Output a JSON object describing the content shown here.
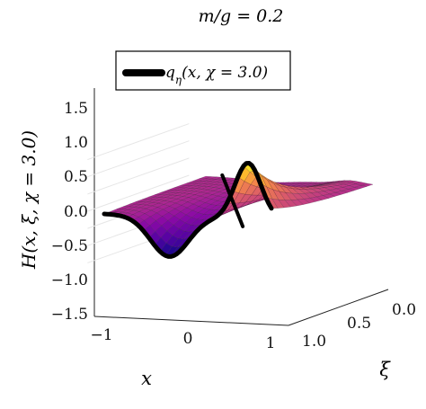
{
  "chart_data": {
    "type": "surface",
    "title": "m/g = 0.2",
    "xlabel": "x",
    "ylabel": "ξ",
    "zlabel": "H(x, ξ, χ = 3.0)",
    "legend": {
      "entry": "q_η(x, χ = 3.0)",
      "placement": "top-left"
    },
    "colormap": "plasma",
    "grid": true,
    "xlim": [
      -1.2,
      1.2
    ],
    "ylim": [
      0.0,
      1.0
    ],
    "zlim": [
      -1.5,
      1.7
    ],
    "x_ticks": [
      "−1",
      "0",
      "1"
    ],
    "y_ticks": [
      "0.0",
      "0.5",
      "1.0"
    ],
    "z_ticks": [
      "1.5",
      "1.0",
      "0.5",
      "0.0",
      "−0.5",
      "−1.0",
      "−1.5"
    ],
    "boundary_curve_xi0": {
      "name": "q_η(x, χ = 3.0)",
      "x": [
        -1.0,
        -0.8,
        -0.6,
        -0.4,
        -0.2,
        0.0,
        0.2,
        0.4,
        0.6,
        0.8,
        1.0
      ],
      "z": [
        0.0,
        -0.3,
        -0.7,
        -1.05,
        -1.15,
        -0.9,
        -0.2,
        0.7,
        1.45,
        1.5,
        0.2
      ]
    }
  }
}
